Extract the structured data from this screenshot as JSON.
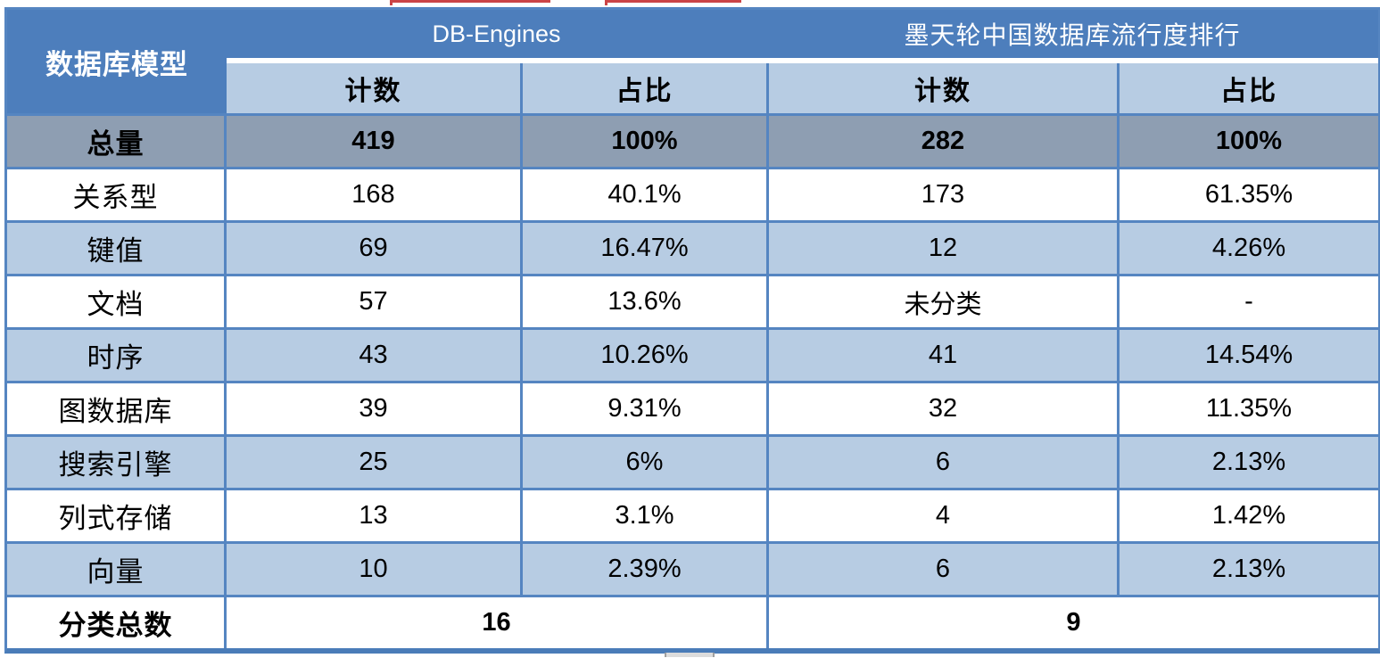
{
  "chart_data": {
    "type": "table",
    "corner_header": "数据库模型",
    "column_groups": [
      {
        "title": "DB-Engines"
      },
      {
        "title": "墨天轮中国数据库流行度排行"
      }
    ],
    "subheaders": [
      "计数",
      "占比",
      "计数",
      "占比"
    ],
    "rows": [
      {
        "label": "总量",
        "cells": [
          "419",
          "100%",
          "282",
          "100%"
        ],
        "emphasis": true,
        "bg": "gray"
      },
      {
        "label": "关系型",
        "cells": [
          "168",
          "40.1%",
          "173",
          "61.35%"
        ],
        "emphasis": false,
        "bg": "white"
      },
      {
        "label": "键值",
        "cells": [
          "69",
          "16.47%",
          "12",
          "4.26%"
        ],
        "emphasis": false,
        "bg": "blue"
      },
      {
        "label": "文档",
        "cells": [
          "57",
          "13.6%",
          "未分类",
          "-"
        ],
        "emphasis": false,
        "bg": "white"
      },
      {
        "label": "时序",
        "cells": [
          "43",
          "10.26%",
          "41",
          "14.54%"
        ],
        "emphasis": false,
        "bg": "blue"
      },
      {
        "label": "图数据库",
        "cells": [
          "39",
          "9.31%",
          "32",
          "11.35%"
        ],
        "emphasis": false,
        "bg": "white"
      },
      {
        "label": "搜索引擎",
        "cells": [
          "25",
          "6%",
          "6",
          "2.13%"
        ],
        "emphasis": false,
        "bg": "blue"
      },
      {
        "label": "列式存储",
        "cells": [
          "13",
          "3.1%",
          "4",
          "1.42%"
        ],
        "emphasis": false,
        "bg": "white"
      },
      {
        "label": "向量",
        "cells": [
          "10",
          "2.39%",
          "6",
          "2.13%"
        ],
        "emphasis": false,
        "bg": "blue"
      }
    ],
    "footer": {
      "label": "分类总数",
      "values": [
        "16",
        "9"
      ],
      "bg": "white"
    }
  },
  "colors": {
    "header_dark_blue": "#4d7ebc",
    "subheader_light_blue": "#b7cce3",
    "total_row_gray": "#8e9eb2",
    "gridline_blue": "#5585c1",
    "bottom_border_blue": "#4a7cb8",
    "artifact_red": "#cc4446"
  }
}
